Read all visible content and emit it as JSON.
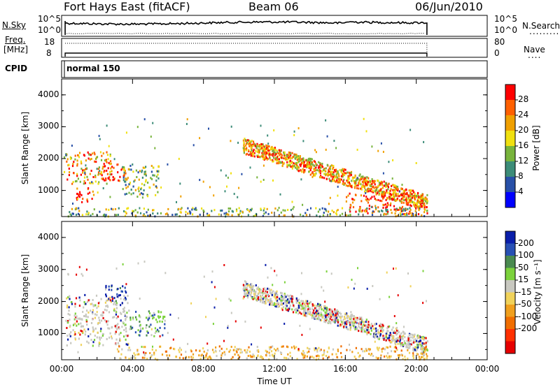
{
  "header": {
    "station": "Fort Hays East (fitACF)",
    "beam": "Beam 06",
    "date": "06/Jun/2010"
  },
  "noise_panel": {
    "left_label": "N.Sky",
    "right_label": "N.Search",
    "left_ticks": [
      "10^5",
      "10^0"
    ],
    "right_ticks": [
      "10^5",
      "10^0"
    ]
  },
  "freq_panel": {
    "left_label_line1": "Freq.",
    "left_label_line2": "[MHz]",
    "right_label": "Nave",
    "left_ticks": [
      "18",
      "8"
    ],
    "right_ticks": [
      "80",
      "0"
    ]
  },
  "cpid_panel": {
    "label": "CPID",
    "value": "normal 150"
  },
  "chart_data": [
    {
      "type": "heatmap",
      "quantity": "Power",
      "ylabel": "Slant Range [km]",
      "colorbar_label": "Power [dB]",
      "colorbar_ticks": [
        "28",
        "24",
        "20",
        "16",
        "12",
        "8",
        "4"
      ],
      "colorbar_levels": [
        0,
        4,
        8,
        12,
        16,
        20,
        24,
        28,
        32
      ],
      "colorbar_colors": [
        "#0000ff",
        "#2850a8",
        "#3c8c78",
        "#78b43c",
        "#f0e010",
        "#f0a000",
        "#ff6000",
        "#ff0000"
      ],
      "xlim_hours": [
        0,
        24
      ],
      "ylim_km": [
        180,
        4500
      ],
      "yticks": [
        "1000",
        "2000",
        "3000",
        "4000"
      ],
      "features": [
        {
          "t_start": 0.1,
          "t_end": 2.8,
          "r_min": 1200,
          "r_max": 2200,
          "level": "high"
        },
        {
          "t_start": 0.8,
          "t_end": 1.9,
          "r_min": 600,
          "r_max": 1100,
          "level": "max"
        },
        {
          "t_start": 2.2,
          "t_end": 3.6,
          "r_min": 1300,
          "r_max": 1900,
          "level": "max"
        },
        {
          "t_start": 3.4,
          "t_end": 5.5,
          "r_min": 800,
          "r_max": 1800,
          "level": "mid"
        },
        {
          "t_start": 10.2,
          "t_end": 20.6,
          "r_min": 400,
          "r_max": 2500,
          "level": "high"
        },
        {
          "t_start": 16.0,
          "t_end": 20.6,
          "r_min": 250,
          "r_max": 900,
          "level": "max"
        },
        {
          "t_start": 0.2,
          "t_end": 20.6,
          "r_min": 180,
          "r_max": 450,
          "level": "mid"
        }
      ]
    },
    {
      "type": "heatmap",
      "quantity": "Velocity",
      "ylabel": "Slant Range [km]",
      "colorbar_label": "Velocity [m s⁻¹]",
      "colorbar_ticks": [
        "200",
        "100",
        "50",
        "15",
        "-15",
        "-50",
        "-100",
        "-200"
      ],
      "colorbar_colors": [
        "#0a1eaa",
        "#2850b4",
        "#4a8a50",
        "#7cd23c",
        "#c8c8c0",
        "#f0d25a",
        "#f0a01e",
        "#f06e00",
        "#ff3000",
        "#e60000"
      ],
      "xlim_hours": [
        0,
        24
      ],
      "ylim_km": [
        180,
        4500
      ],
      "yticks": [
        "1000",
        "2000",
        "3000",
        "4000"
      ],
      "features": [
        {
          "t_start": 0.2,
          "t_end": 3.8,
          "r_min": 600,
          "r_max": 2200,
          "level": "ground"
        },
        {
          "t_start": 2.4,
          "t_end": 3.6,
          "r_min": 2000,
          "r_max": 2500,
          "level": "toward_high"
        },
        {
          "t_start": 3.8,
          "t_end": 5.8,
          "r_min": 900,
          "r_max": 1700,
          "level": "toward_mid"
        },
        {
          "t_start": 10.2,
          "t_end": 20.6,
          "r_min": 400,
          "r_max": 2400,
          "level": "ground"
        },
        {
          "t_start": 3.0,
          "t_end": 20.6,
          "r_min": 180,
          "r_max": 600,
          "level": "away_low"
        }
      ],
      "xticks": [
        "00:00",
        "04:00",
        "08:00",
        "12:00",
        "16:00",
        "20:00",
        "00:00"
      ],
      "xlabel": "Time UT"
    }
  ]
}
